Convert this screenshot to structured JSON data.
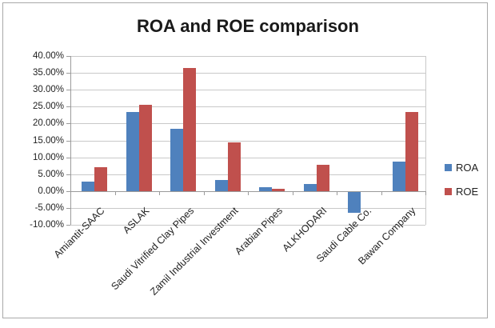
{
  "window": {
    "background": "#ffffff"
  },
  "colors": {
    "roa_blue": "#4F81BD",
    "roe_red": "#C0504D",
    "gridline": "#C9C9C9",
    "axis": "#9B9B9B",
    "text": "#1F1F1F",
    "frame_border": "#A9A9A9"
  },
  "chart_data": {
    "type": "bar",
    "title": "ROA and ROE comparison",
    "categories": [
      "Amiantit-SAAC",
      "ASLAK",
      "Saudi Vitrified Clay Pipes",
      "Zamil Industrial Investment",
      "Arabian Pipes",
      "ALKHODARI",
      "Saudi Cable Co.",
      "Bawan Company"
    ],
    "series": [
      {
        "name": "ROA",
        "color": "#4F81BD",
        "values": [
          2.8,
          23.3,
          18.4,
          3.3,
          1.2,
          2.1,
          -6.2,
          8.8
        ]
      },
      {
        "name": "ROE",
        "color": "#C0504D",
        "values": [
          7.0,
          25.5,
          36.4,
          14.4,
          0.7,
          7.9,
          0,
          23.4
        ]
      }
    ],
    "value_unit": "percent",
    "ylim": [
      -10,
      40
    ],
    "ytick_step": 5,
    "ytick_labels": [
      "40.00%",
      "35.00%",
      "30.00%",
      "25.00%",
      "20.00%",
      "15.00%",
      "10.00%",
      "5.00%",
      "0.00%",
      "-5.00%",
      "-10.00%"
    ],
    "grid": true,
    "legend_position": "right",
    "x_label_rotation_deg": 45
  }
}
